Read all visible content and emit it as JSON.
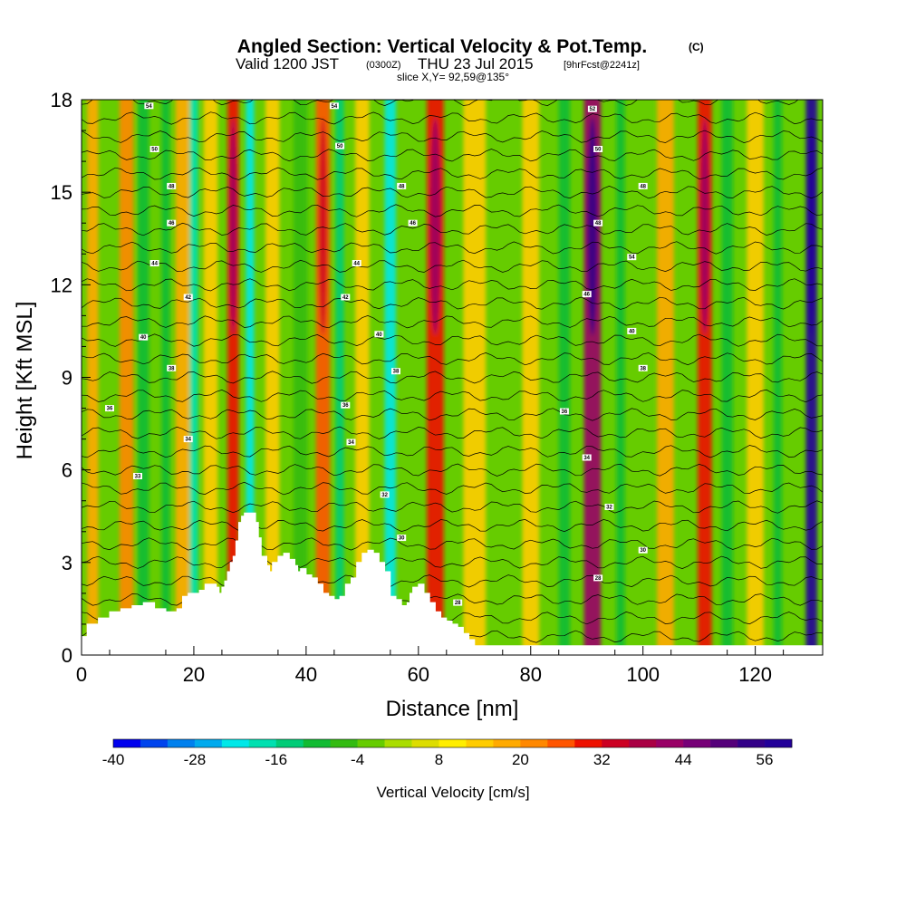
{
  "title": {
    "main": "Angled Section: Vertical Velocity & Pot.Temp.",
    "units": "(C)",
    "valid_prefix": "Valid 1200 JST",
    "zulu": "(0300Z)",
    "valid_date": "THU 23 Jul 2015",
    "forecast": "[9hrFcst@2241z]",
    "slice": "slice X,Y= 92,59@135°"
  },
  "chart_data": {
    "type": "heatmap",
    "xlabel": "Distance [nm]",
    "ylabel": "Height [Kft MSL]",
    "xlim": [
      0,
      132
    ],
    "ylim": [
      0,
      18
    ],
    "x_ticks": [
      "0",
      "20",
      "40",
      "60",
      "80",
      "100",
      "120"
    ],
    "y_ticks": [
      "0",
      "3",
      "6",
      "9",
      "12",
      "15",
      "18"
    ],
    "colorbar": {
      "title": "Vertical Velocity [cm/s]",
      "min": -40,
      "max": 60,
      "step": 4,
      "tick_labels": [
        "-40",
        "-28",
        "-16",
        "-4",
        "8",
        "20",
        "32",
        "44",
        "56"
      ],
      "colors": [
        "#0000ee",
        "#0044ee",
        "#0080ee",
        "#00aaee",
        "#00e8e8",
        "#00e0b0",
        "#00cc77",
        "#11bb33",
        "#33bb11",
        "#66cc00",
        "#aadd00",
        "#dddd00",
        "#ffee00",
        "#ffcc00",
        "#ffaa00",
        "#ff8800",
        "#ff5500",
        "#ee1100",
        "#cc0022",
        "#aa0044",
        "#990066",
        "#770077",
        "#55007a",
        "#330088",
        "#220099"
      ]
    },
    "terrain_kft": [
      [
        0,
        0.6
      ],
      [
        1,
        1.0
      ],
      [
        3,
        1.2
      ],
      [
        5,
        1.4
      ],
      [
        7,
        1.5
      ],
      [
        9,
        1.6
      ],
      [
        11,
        1.7
      ],
      [
        13,
        1.5
      ],
      [
        15,
        1.4
      ],
      [
        17,
        1.5
      ],
      [
        18,
        1.9
      ],
      [
        19,
        2.0
      ],
      [
        21,
        2.1
      ],
      [
        22,
        2.3
      ],
      [
        23,
        2.3
      ],
      [
        24,
        2.2
      ],
      [
        24.5,
        2.0
      ],
      [
        25,
        2.2
      ],
      [
        25.5,
        2.4
      ],
      [
        26,
        2.7
      ],
      [
        26.5,
        3.0
      ],
      [
        27,
        3.2
      ],
      [
        27.5,
        3.7
      ],
      [
        28,
        4.3
      ],
      [
        28.5,
        4.5
      ],
      [
        29,
        4.6
      ],
      [
        30,
        4.6
      ],
      [
        31,
        4.3
      ],
      [
        31.5,
        3.8
      ],
      [
        32,
        3.2
      ],
      [
        33,
        2.9
      ],
      [
        33.5,
        2.7
      ],
      [
        34,
        3.0
      ],
      [
        35,
        3.2
      ],
      [
        36,
        3.3
      ],
      [
        37,
        3.1
      ],
      [
        38,
        2.9
      ],
      [
        38.5,
        2.7
      ],
      [
        39,
        2.8
      ],
      [
        40,
        2.6
      ],
      [
        41,
        2.5
      ],
      [
        42,
        2.3
      ],
      [
        43,
        2.0
      ],
      [
        44,
        1.9
      ],
      [
        45,
        1.8
      ],
      [
        46,
        1.9
      ],
      [
        47,
        2.3
      ],
      [
        48,
        2.5
      ],
      [
        49,
        3.0
      ],
      [
        50,
        3.3
      ],
      [
        51,
        3.4
      ],
      [
        52,
        3.3
      ],
      [
        53,
        3.0
      ],
      [
        54,
        2.7
      ],
      [
        55,
        1.9
      ],
      [
        56,
        1.8
      ],
      [
        57,
        1.6
      ],
      [
        58,
        1.7
      ],
      [
        58.5,
        2.0
      ],
      [
        59,
        2.2
      ],
      [
        60,
        2.3
      ],
      [
        61,
        2.0
      ],
      [
        62,
        1.7
      ],
      [
        63,
        1.4
      ],
      [
        64,
        1.2
      ],
      [
        65,
        1.1
      ],
      [
        66,
        1.0
      ],
      [
        67,
        0.9
      ],
      [
        68,
        0.7
      ],
      [
        69,
        0.5
      ],
      [
        70,
        0.3
      ],
      [
        75,
        0.3
      ],
      [
        90,
        0.3
      ],
      [
        110,
        0.3
      ],
      [
        132,
        0.3
      ]
    ],
    "bands": [
      {
        "x": 2,
        "w": 2.0,
        "v": 16
      },
      {
        "x": 8,
        "w": 2.5,
        "v": 20
      },
      {
        "x": 11,
        "w": 2.0,
        "v": -10
      },
      {
        "x": 15,
        "w": 1.5,
        "v": -12
      },
      {
        "x": 18,
        "w": 2.5,
        "v": 16
      },
      {
        "x": 20,
        "w": 1.5,
        "v": -20
      },
      {
        "x": 23,
        "w": 2.5,
        "v": 14
      },
      {
        "x": 27,
        "w": 2.0,
        "v": 30
      },
      {
        "x": 30,
        "w": 1.5,
        "v": -22
      },
      {
        "x": 34,
        "w": 2.5,
        "v": 14
      },
      {
        "x": 39,
        "w": 2.5,
        "v": -8
      },
      {
        "x": 43,
        "w": 2.5,
        "v": 24
      },
      {
        "x": 46,
        "w": 1.5,
        "v": -16
      },
      {
        "x": 50,
        "w": 2.5,
        "v": 14
      },
      {
        "x": 55,
        "w": 2.0,
        "v": -22
      },
      {
        "x": 63,
        "w": 3.0,
        "v": 30
      },
      {
        "x": 70,
        "w": 4.0,
        "v": 14
      },
      {
        "x": 80,
        "w": 3.0,
        "v": 12
      },
      {
        "x": 86,
        "w": 2.0,
        "v": -12
      },
      {
        "x": 91,
        "w": 3.0,
        "v": 42
      },
      {
        "x": 96,
        "w": 1.5,
        "v": -10
      },
      {
        "x": 104,
        "w": 3.0,
        "v": 18
      },
      {
        "x": 111,
        "w": 2.5,
        "v": 30
      },
      {
        "x": 115,
        "w": 2.0,
        "v": -12
      },
      {
        "x": 120,
        "w": 3.0,
        "v": 12
      },
      {
        "x": 124,
        "w": 1.5,
        "v": -12
      },
      {
        "x": 130,
        "w": 2.0,
        "v": 58
      }
    ],
    "contour_labels": [
      {
        "x": 12,
        "y": 17.8,
        "t": "54"
      },
      {
        "x": 13,
        "y": 16.4,
        "t": "50"
      },
      {
        "x": 16,
        "y": 15.2,
        "t": "48"
      },
      {
        "x": 16,
        "y": 14.0,
        "t": "46"
      },
      {
        "x": 13,
        "y": 12.7,
        "t": "44"
      },
      {
        "x": 19,
        "y": 11.6,
        "t": "42"
      },
      {
        "x": 11,
        "y": 10.3,
        "t": "40"
      },
      {
        "x": 16,
        "y": 9.3,
        "t": "38"
      },
      {
        "x": 5,
        "y": 8.0,
        "t": "36"
      },
      {
        "x": 19,
        "y": 7.0,
        "t": "34"
      },
      {
        "x": 10,
        "y": 5.8,
        "t": "33"
      },
      {
        "x": 45,
        "y": 17.8,
        "t": "54"
      },
      {
        "x": 46,
        "y": 16.5,
        "t": "50"
      },
      {
        "x": 57,
        "y": 15.2,
        "t": "48"
      },
      {
        "x": 59,
        "y": 14.0,
        "t": "46"
      },
      {
        "x": 49,
        "y": 12.7,
        "t": "44"
      },
      {
        "x": 47,
        "y": 11.6,
        "t": "42"
      },
      {
        "x": 53,
        "y": 10.4,
        "t": "40"
      },
      {
        "x": 56,
        "y": 9.2,
        "t": "38"
      },
      {
        "x": 47,
        "y": 8.1,
        "t": "36"
      },
      {
        "x": 48,
        "y": 6.9,
        "t": "34"
      },
      {
        "x": 54,
        "y": 5.2,
        "t": "32"
      },
      {
        "x": 57,
        "y": 3.8,
        "t": "30"
      },
      {
        "x": 67,
        "y": 1.7,
        "t": "28"
      },
      {
        "x": 91,
        "y": 17.7,
        "t": "52"
      },
      {
        "x": 92,
        "y": 16.4,
        "t": "50"
      },
      {
        "x": 92,
        "y": 14.0,
        "t": "48"
      },
      {
        "x": 90,
        "y": 11.7,
        "t": "46"
      },
      {
        "x": 100,
        "y": 15.2,
        "t": "48"
      },
      {
        "x": 98,
        "y": 12.9,
        "t": "54"
      },
      {
        "x": 98,
        "y": 10.5,
        "t": "40"
      },
      {
        "x": 100,
        "y": 9.3,
        "t": "38"
      },
      {
        "x": 86,
        "y": 7.9,
        "t": "36"
      },
      {
        "x": 90,
        "y": 6.4,
        "t": "34"
      },
      {
        "x": 94,
        "y": 4.8,
        "t": "32"
      },
      {
        "x": 100,
        "y": 3.4,
        "t": "30"
      },
      {
        "x": 92,
        "y": 2.5,
        "t": "28"
      }
    ]
  }
}
